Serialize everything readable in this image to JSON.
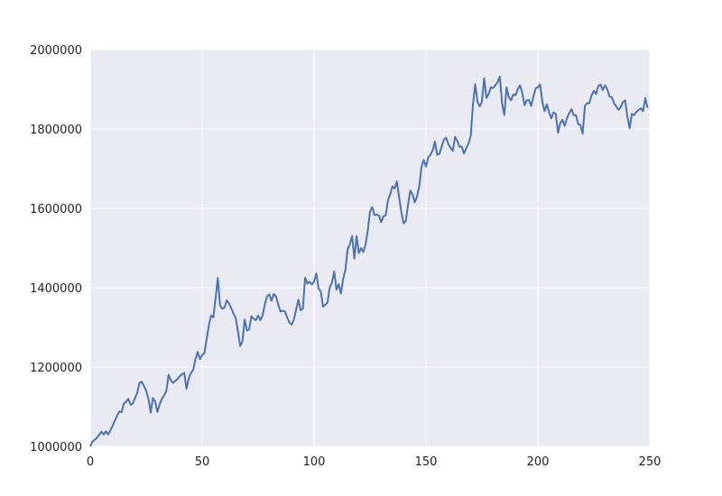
{
  "chart_data": {
    "type": "line",
    "title": "",
    "xlabel": "",
    "ylabel": "",
    "xlim": [
      0,
      250
    ],
    "ylim": [
      1000000,
      2000000
    ],
    "xticks": [
      0,
      50,
      100,
      150,
      200,
      250
    ],
    "yticks": [
      1000000,
      1200000,
      1400000,
      1600000,
      1800000,
      2000000
    ],
    "xtick_labels": [
      "0",
      "50",
      "100",
      "150",
      "200",
      "250"
    ],
    "ytick_labels": [
      "1000000",
      "1200000",
      "1400000",
      "1600000",
      "1800000",
      "2000000"
    ],
    "grid": true,
    "legend": "none",
    "colors": {
      "line": "#4c72b0",
      "plot_bg": "#eaeaf2",
      "grid": "#ffffff"
    },
    "series": [
      {
        "x": [
          0,
          1,
          3,
          5,
          6,
          7,
          8,
          9,
          11,
          12,
          13,
          14,
          15,
          16,
          17,
          18,
          19,
          20,
          21,
          22,
          23,
          24,
          25,
          26,
          27,
          28,
          29,
          30,
          31,
          32,
          33,
          34,
          35,
          36,
          37,
          38,
          39,
          40,
          41,
          42,
          43,
          44,
          45,
          46,
          47,
          48,
          49,
          50,
          51,
          52,
          53,
          54,
          55,
          56,
          57,
          58,
          59,
          60,
          61,
          62,
          63,
          64,
          65,
          66,
          67,
          68,
          69,
          70,
          71,
          72,
          73,
          74,
          75,
          76,
          77,
          78,
          79,
          80,
          81,
          82,
          83,
          84,
          85,
          86,
          87,
          88,
          89,
          90,
          91,
          92,
          93,
          94,
          95,
          96,
          97,
          98,
          99,
          100,
          101,
          102,
          103,
          104,
          105,
          106,
          107,
          108,
          109,
          110,
          111,
          112,
          113,
          114,
          115,
          116,
          117,
          118,
          119,
          120,
          121,
          122,
          123,
          124,
          125,
          126,
          127,
          128,
          129,
          130,
          131,
          132,
          133,
          134,
          135,
          136,
          137,
          138,
          139,
          140,
          141,
          142,
          143,
          144,
          145,
          146,
          147,
          148,
          149,
          150,
          151,
          152,
          153,
          154,
          155,
          156,
          157,
          158,
          159,
          160,
          161,
          162,
          163,
          164,
          165,
          166,
          167,
          168,
          169,
          170,
          171,
          172,
          173,
          174,
          175,
          176,
          177,
          178,
          179,
          180,
          181,
          182,
          183,
          184,
          185,
          186,
          187,
          188,
          189,
          190,
          191,
          192,
          193,
          194,
          195,
          196,
          197,
          198,
          199,
          200,
          201,
          202,
          203,
          204,
          205,
          206,
          207,
          208,
          209,
          210,
          211,
          212,
          213,
          214,
          215,
          216,
          217,
          218,
          219,
          220,
          221,
          222,
          223,
          224,
          225,
          226,
          227,
          228,
          229,
          230,
          231,
          232,
          233,
          234,
          235,
          236,
          237,
          238,
          239,
          240,
          241,
          242,
          243,
          244,
          245,
          246,
          247,
          248,
          249
        ],
        "y": [
          1000000,
          1012000,
          1022000,
          1037000,
          1030000,
          1038000,
          1030000,
          1040000,
          1065000,
          1078000,
          1088000,
          1086000,
          1108000,
          1112000,
          1120000,
          1105000,
          1108000,
          1122000,
          1135000,
          1160000,
          1163000,
          1152000,
          1140000,
          1120000,
          1085000,
          1122000,
          1113000,
          1087000,
          1106000,
          1120000,
          1128000,
          1140000,
          1180000,
          1167000,
          1160000,
          1165000,
          1170000,
          1177000,
          1182000,
          1185000,
          1145000,
          1172000,
          1185000,
          1193000,
          1220000,
          1238000,
          1220000,
          1230000,
          1235000,
          1270000,
          1305000,
          1330000,
          1325000,
          1373000,
          1425000,
          1355000,
          1347000,
          1350000,
          1368000,
          1360000,
          1348000,
          1335000,
          1323000,
          1290000,
          1253000,
          1265000,
          1320000,
          1292000,
          1295000,
          1328000,
          1322000,
          1318000,
          1330000,
          1318000,
          1330000,
          1358000,
          1378000,
          1383000,
          1367000,
          1384000,
          1378000,
          1357000,
          1340000,
          1342000,
          1340000,
          1325000,
          1312000,
          1307000,
          1320000,
          1345000,
          1370000,
          1343000,
          1348000,
          1425000,
          1410000,
          1415000,
          1408000,
          1415000,
          1436000,
          1398000,
          1390000,
          1352000,
          1357000,
          1362000,
          1401000,
          1413000,
          1441000,
          1395000,
          1409000,
          1385000,
          1422000,
          1445000,
          1497000,
          1510000,
          1530000,
          1473000,
          1530000,
          1487000,
          1500000,
          1490000,
          1508000,
          1545000,
          1592000,
          1603000,
          1583000,
          1584000,
          1582000,
          1565000,
          1580000,
          1582000,
          1620000,
          1635000,
          1655000,
          1650000,
          1668000,
          1628000,
          1590000,
          1562000,
          1568000,
          1610000,
          1645000,
          1635000,
          1615000,
          1630000,
          1655000,
          1705000,
          1722000,
          1705000,
          1728000,
          1735000,
          1746000,
          1768000,
          1735000,
          1737000,
          1755000,
          1773000,
          1778000,
          1762000,
          1752000,
          1745000,
          1780000,
          1770000,
          1755000,
          1755000,
          1738000,
          1752000,
          1763000,
          1783000,
          1862000,
          1913000,
          1868000,
          1857000,
          1868000,
          1928000,
          1878000,
          1888000,
          1905000,
          1903000,
          1910000,
          1918000,
          1932000,
          1865000,
          1835000,
          1905000,
          1880000,
          1872000,
          1887000,
          1885000,
          1900000,
          1910000,
          1892000,
          1860000,
          1872000,
          1873000,
          1858000,
          1882000,
          1902000,
          1905000,
          1912000,
          1868000,
          1845000,
          1862000,
          1842000,
          1827000,
          1842000,
          1838000,
          1790000,
          1815000,
          1823000,
          1808000,
          1827000,
          1840000,
          1850000,
          1835000,
          1835000,
          1812000,
          1810000,
          1788000,
          1858000,
          1865000,
          1865000,
          1885000,
          1896000,
          1888000,
          1908000,
          1912000,
          1898000,
          1910000,
          1900000,
          1882000,
          1880000,
          1865000,
          1857000,
          1848000,
          1855000,
          1868000,
          1872000,
          1830000,
          1802000,
          1838000,
          1835000,
          1843000,
          1848000,
          1852000,
          1845000,
          1878000,
          1853000
        ]
      }
    ]
  }
}
